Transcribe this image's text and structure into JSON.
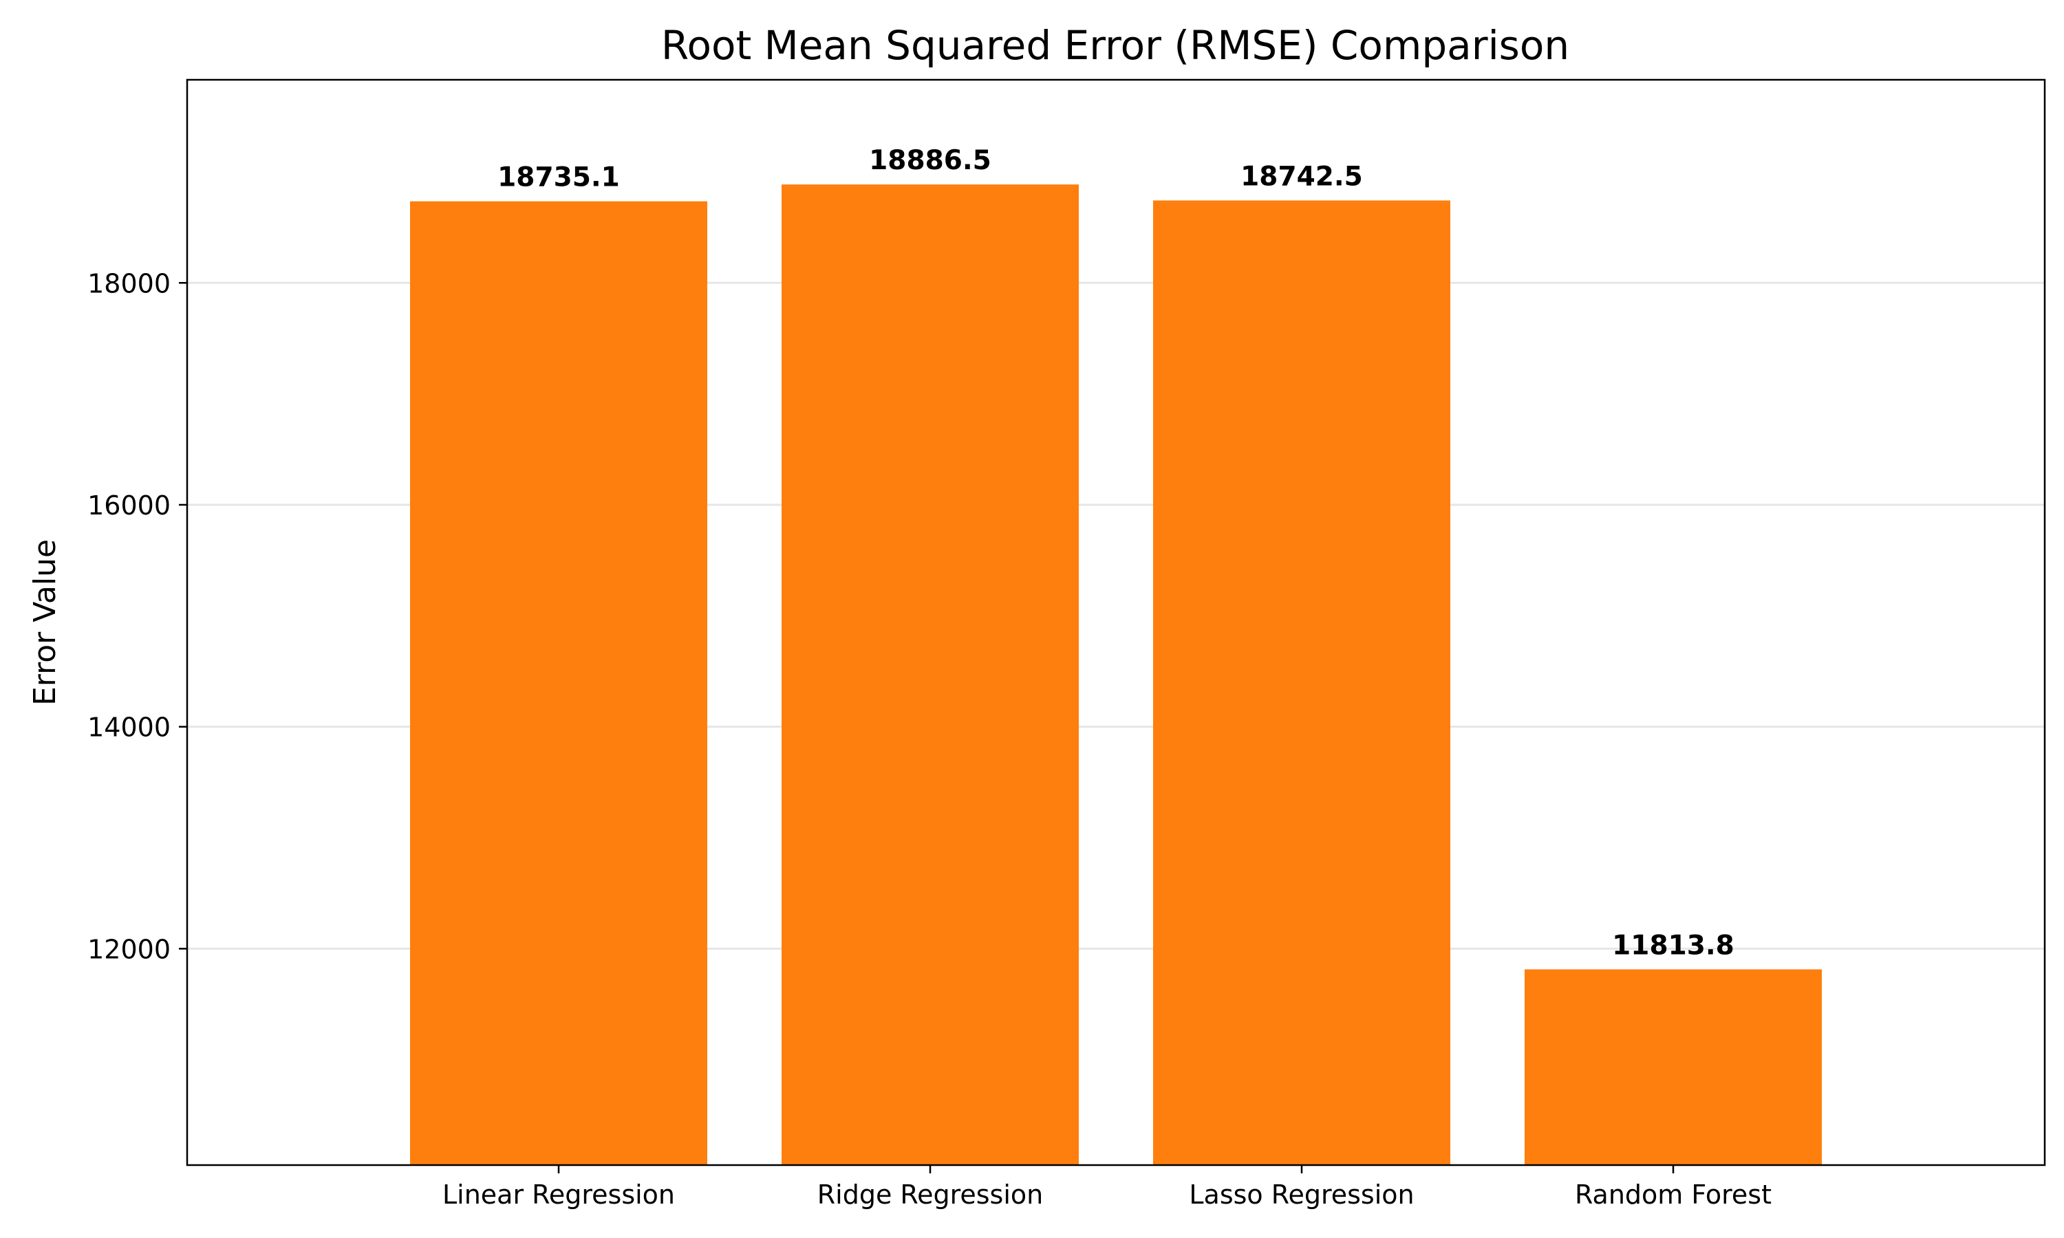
{
  "chart_data": {
    "type": "bar",
    "title": "Root Mean Squared Error (RMSE) Comparison",
    "xlabel": "",
    "ylabel": "Error Value",
    "categories": [
      "Linear Regression",
      "Ridge Regression",
      "Lasso Regression",
      "Random Forest"
    ],
    "values": [
      18735.1,
      18886.5,
      18742.5,
      11813.8
    ],
    "data_labels": [
      "18735.1",
      "18886.5",
      "18742.5",
      "11813.8"
    ],
    "ylim": [
      10050,
      19830
    ],
    "yticks": [
      12000,
      14000,
      16000,
      18000
    ],
    "ytick_labels": [
      "12000",
      "14000",
      "16000",
      "18000"
    ],
    "grid": "y",
    "legend": "none",
    "bar_color": "#ff7f0e"
  }
}
